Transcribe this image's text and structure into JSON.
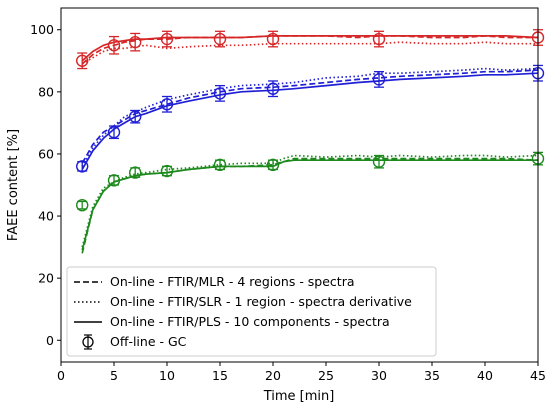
{
  "chart_data": {
    "type": "line",
    "xlabel": "Time [min]",
    "ylabel": "FAEE content [%]",
    "xlim": [
      0,
      45
    ],
    "ylim": [
      -7,
      107
    ],
    "xticks": [
      0,
      5,
      10,
      15,
      20,
      25,
      30,
      35,
      40,
      45
    ],
    "yticks": [
      0,
      20,
      40,
      60,
      80,
      100
    ],
    "grid": false,
    "legend_position": "lower-left",
    "legend": [
      {
        "label": "On-line - FTIR/MLR - 4 regions - spectra",
        "style": "dashed"
      },
      {
        "label": "On-line - FTIR/SLR - 1 region - spectra derivative",
        "style": "dotted"
      },
      {
        "label": "On-line - FTIR/PLS - 10 components - spectra",
        "style": "solid"
      },
      {
        "label": "Off-line - GC",
        "style": "marker"
      }
    ],
    "colors": {
      "red": "#d62728",
      "blue": "#1f1fd6",
      "green": "#1e8a1e"
    },
    "series": [
      {
        "color_key": "red",
        "method": "mlr",
        "style": "dashed",
        "x": [
          2,
          3,
          4,
          5,
          6,
          7,
          8,
          10,
          12,
          15,
          17,
          20,
          22,
          25,
          28,
          30,
          32,
          35,
          38,
          40,
          42,
          45
        ],
        "y": [
          89,
          92,
          94,
          95,
          96,
          96.5,
          97,
          97,
          97.5,
          97.5,
          97.5,
          98,
          98,
          98,
          97.5,
          98,
          98,
          97.5,
          97.5,
          98,
          97.5,
          97.5
        ]
      },
      {
        "color_key": "red",
        "method": "slr",
        "style": "dotted",
        "x": [
          2,
          3,
          4,
          5,
          6,
          7,
          8,
          10,
          12,
          15,
          17,
          20,
          22,
          25,
          28,
          30,
          32,
          35,
          38,
          40,
          42,
          45
        ],
        "y": [
          89,
          91,
          93,
          94,
          94,
          94.5,
          95,
          94,
          94.5,
          95,
          95,
          95.5,
          95.5,
          95.5,
          95.5,
          95.5,
          96,
          95.5,
          95.5,
          96,
          95.5,
          95.5
        ]
      },
      {
        "color_key": "red",
        "method": "pls",
        "style": "solid",
        "x": [
          2,
          3,
          4,
          5,
          6,
          7,
          8,
          10,
          12,
          15,
          17,
          20,
          22,
          25,
          28,
          30,
          32,
          35,
          38,
          40,
          42,
          45
        ],
        "y": [
          90,
          93,
          95,
          96,
          96.5,
          97,
          97,
          97.5,
          97.5,
          97.5,
          97.5,
          98,
          98,
          98,
          98,
          98,
          98,
          98,
          98,
          98,
          98,
          97.5
        ]
      },
      {
        "color_key": "blue",
        "method": "mlr",
        "style": "dashed",
        "x": [
          2,
          3,
          4,
          5,
          6,
          7,
          8,
          10,
          12,
          15,
          17,
          20,
          22,
          25,
          28,
          30,
          32,
          35,
          38,
          40,
          42,
          45
        ],
        "y": [
          57,
          63,
          67,
          69,
          71,
          73,
          74,
          76,
          78,
          80,
          81,
          81.5,
          82,
          83,
          84,
          84.5,
          85,
          85.5,
          86,
          86.5,
          86.5,
          87
        ]
      },
      {
        "color_key": "blue",
        "method": "slr",
        "style": "dotted",
        "x": [
          2,
          3,
          4,
          5,
          6,
          7,
          8,
          10,
          12,
          15,
          17,
          20,
          22,
          25,
          28,
          30,
          32,
          35,
          38,
          40,
          42,
          45
        ],
        "y": [
          56,
          62,
          66,
          69,
          72,
          73.5,
          75,
          77.5,
          79,
          81,
          82,
          82.5,
          83,
          84.5,
          85,
          86,
          86,
          86.5,
          87,
          87.5,
          87,
          87.5
        ]
      },
      {
        "color_key": "blue",
        "method": "pls",
        "style": "solid",
        "x": [
          2,
          3,
          4,
          5,
          6,
          7,
          8,
          10,
          12,
          15,
          17,
          20,
          22,
          25,
          28,
          30,
          32,
          35,
          38,
          40,
          42,
          45
        ],
        "y": [
          55,
          61,
          65,
          68,
          70,
          72,
          73,
          75.5,
          77,
          79,
          80,
          80.5,
          81,
          82,
          83,
          83.5,
          84,
          84.5,
          85,
          85.5,
          85.5,
          86
        ]
      },
      {
        "color_key": "green",
        "method": "mlr",
        "style": "dashed",
        "x": [
          2,
          3,
          4,
          5,
          6,
          7,
          8,
          10,
          12,
          15,
          17,
          20,
          21,
          22,
          25,
          28,
          30,
          32,
          35,
          38,
          40,
          42,
          45
        ],
        "y": [
          28,
          42,
          48,
          51,
          52,
          53,
          53.5,
          54,
          55,
          56,
          56,
          56.5,
          57.5,
          58.5,
          58.5,
          58.5,
          58.5,
          58.5,
          58.5,
          58.5,
          58.5,
          58.5,
          58
        ]
      },
      {
        "color_key": "green",
        "method": "slr",
        "style": "dotted",
        "x": [
          2,
          3,
          4,
          5,
          6,
          7,
          8,
          10,
          12,
          15,
          17,
          20,
          21,
          22,
          25,
          28,
          30,
          32,
          35,
          38,
          40,
          42,
          45
        ],
        "y": [
          30,
          43,
          49,
          51,
          52.5,
          53.5,
          54,
          55,
          55.5,
          56.5,
          57,
          57,
          58.5,
          59.5,
          59,
          59.5,
          59,
          59.5,
          59,
          59.5,
          59.5,
          59,
          59.5
        ]
      },
      {
        "color_key": "green",
        "method": "pls",
        "style": "solid",
        "x": [
          2,
          3,
          4,
          5,
          6,
          7,
          8,
          10,
          12,
          15,
          17,
          20,
          21,
          22,
          25,
          28,
          30,
          32,
          35,
          38,
          40,
          42,
          45
        ],
        "y": [
          29,
          42,
          48,
          51,
          52,
          53,
          53.5,
          54,
          55,
          56,
          56,
          56,
          57.5,
          58,
          58,
          58,
          58,
          58,
          58,
          58,
          58,
          58,
          58
        ]
      }
    ],
    "gc_points": [
      {
        "color_key": "red",
        "x": [
          2,
          5,
          7,
          10,
          15,
          20,
          30,
          45
        ],
        "y": [
          90,
          95,
          96,
          97,
          97,
          97,
          97,
          97.5
        ],
        "err": [
          2.5,
          2.8,
          2.8,
          2.5,
          2.5,
          2.5,
          2.5,
          2.5
        ]
      },
      {
        "color_key": "blue",
        "x": [
          2,
          5,
          7,
          10,
          15,
          20,
          30,
          45
        ],
        "y": [
          56,
          67,
          72,
          76,
          79.5,
          81,
          84,
          86
        ],
        "err": [
          1.5,
          2,
          2,
          2.5,
          2.5,
          2.5,
          2.5,
          2.5
        ]
      },
      {
        "color_key": "green",
        "x": [
          2,
          5,
          7,
          10,
          15,
          20,
          30,
          45
        ],
        "y": [
          43.5,
          51.5,
          54,
          54.5,
          56.5,
          56.5,
          57.5,
          58.5
        ],
        "err": [
          1.2,
          1.5,
          1.5,
          1.5,
          1.5,
          1.5,
          2,
          2
        ]
      }
    ]
  }
}
